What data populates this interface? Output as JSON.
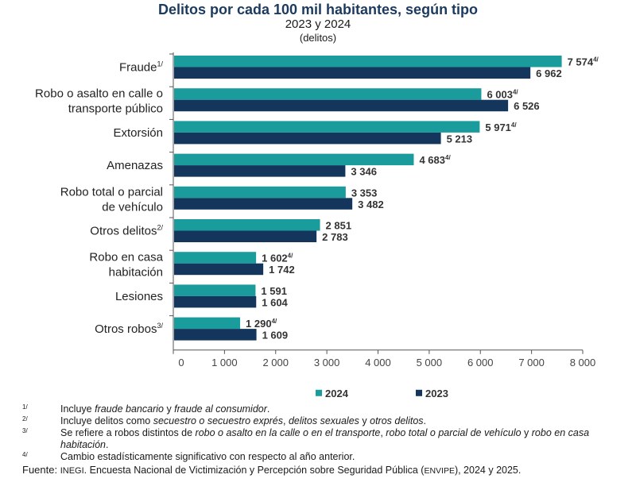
{
  "header": {
    "title": "Delitos por cada 100 mil habitantes, según tipo",
    "subtitle": "2023 y 2024",
    "unit": "(delitos)"
  },
  "chart_data": {
    "type": "bar",
    "orientation": "horizontal",
    "categories": [
      [
        "Fraude",
        "1/"
      ],
      [
        "Robo o asalto en calle o",
        "transporte público"
      ],
      [
        "Extorsión"
      ],
      [
        "Amenazas"
      ],
      [
        "Robo total o parcial",
        "de vehículo"
      ],
      [
        "Otros delitos",
        "2/"
      ],
      [
        "Robo en casa",
        "habitación"
      ],
      [
        "Lesiones"
      ],
      [
        "Otros robos",
        "3/"
      ]
    ],
    "series": [
      {
        "name": "2024",
        "color": "#1b9c9c",
        "values": [
          7574,
          6003,
          5971,
          4683,
          3353,
          2851,
          1602,
          1591,
          1290
        ],
        "labels": [
          "7 574",
          "6 003",
          "5 971",
          "4 683",
          "3 353",
          "2 851",
          "1 602",
          "1 591",
          "1 290"
        ],
        "significant": [
          true,
          true,
          true,
          true,
          false,
          false,
          true,
          false,
          true
        ]
      },
      {
        "name": "2023",
        "color": "#14365c",
        "values": [
          6962,
          6526,
          5213,
          3346,
          3482,
          2783,
          1742,
          1604,
          1609
        ],
        "labels": [
          "6 962",
          "6 526",
          "5 213",
          "3 346",
          "3 482",
          "2 783",
          "1 742",
          "1 604",
          "1 609"
        ],
        "significant": [
          false,
          false,
          false,
          false,
          false,
          false,
          false,
          false,
          false
        ]
      }
    ],
    "significance_mark": "4/",
    "xlim": [
      0,
      8000
    ],
    "xticks": [
      0,
      1000,
      2000,
      3000,
      4000,
      5000,
      6000,
      7000,
      8000
    ],
    "xtick_labels": [
      "0",
      "1 000",
      "2 000",
      "3 000",
      "4 000",
      "5 000",
      "6 000",
      "7 000",
      "8 000"
    ],
    "legend": "bottom-center",
    "grid": false
  },
  "notes": [
    {
      "mark": "1/",
      "parts": [
        [
          "Incluye ",
          false
        ],
        [
          "fraude bancario",
          true
        ],
        [
          " y ",
          false
        ],
        [
          "fraude al consumidor",
          true
        ],
        [
          ".",
          false
        ]
      ]
    },
    {
      "mark": "2/",
      "parts": [
        [
          "Incluye delitos como ",
          false
        ],
        [
          "secuestro o secuestro exprés",
          true
        ],
        [
          ", ",
          false
        ],
        [
          "delitos sexuales",
          true
        ],
        [
          " y ",
          false
        ],
        [
          "otros delitos",
          true
        ],
        [
          ".",
          false
        ]
      ]
    },
    {
      "mark": "3/",
      "parts": [
        [
          "Se refiere a robos distintos de ",
          false
        ],
        [
          "robo o asalto en la calle o en el transporte",
          true
        ],
        [
          ", ",
          false
        ],
        [
          "robo total o parcial de vehículo",
          true
        ],
        [
          " y ",
          false
        ],
        [
          "robo en casa habitación",
          true
        ],
        [
          ".",
          false
        ]
      ]
    },
    {
      "mark": "4/",
      "parts": [
        [
          "Cambio estadísticamente significativo con respecto al año anterior.",
          false
        ]
      ]
    }
  ],
  "source": {
    "label": "Fuente:",
    "org": "INEGI",
    "text": ". Encuesta Nacional de Victimización y Percepción sobre Seguridad Pública (",
    "acronym": "ENVIPE",
    "tail": "), 2024 y 2025."
  }
}
